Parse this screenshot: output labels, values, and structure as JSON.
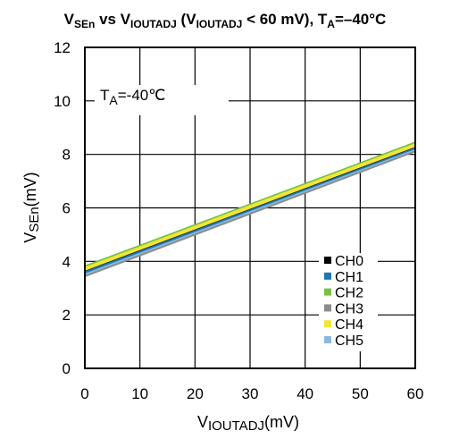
{
  "chart_data": {
    "type": "line",
    "title": {
      "v": "V",
      "v_sub": "SEn",
      "mid": " vs V",
      "mid_sub": "IOUTADJ",
      "paren_open": " (V",
      "paren_sub": "IOUTADJ",
      "cond": " < 60 mV), T",
      "t_sub": "A",
      "temp": "=–40°C"
    },
    "xlabel": {
      "v": "V",
      "sub": "IOUTADJ",
      "unit": "(mV)"
    },
    "ylabel": {
      "v": "V",
      "sub": "SEn",
      "unit": "(mV)"
    },
    "annotation": {
      "t": "T",
      "sub": "A",
      "rest": "=-40℃"
    },
    "xlim": [
      0,
      60
    ],
    "ylim": [
      0,
      12
    ],
    "x_ticks": [
      0,
      10,
      20,
      30,
      40,
      50,
      60
    ],
    "y_ticks": [
      0,
      2,
      4,
      6,
      8,
      10,
      12
    ],
    "x_tick_labels": [
      "0",
      "10",
      "20",
      "30",
      "40",
      "50",
      "60"
    ],
    "y_tick_labels": [
      "0",
      "2",
      "4",
      "6",
      "8",
      "10",
      "12"
    ],
    "grid": true,
    "legend_position": "bottom-right",
    "series": [
      {
        "name": "CH0",
        "color": "#000000",
        "x": [
          0,
          60
        ],
        "y": [
          3.7,
          8.33
        ]
      },
      {
        "name": "CH1",
        "color": "#1f77b4",
        "x": [
          0,
          60
        ],
        "y": [
          3.62,
          8.27
        ]
      },
      {
        "name": "CH2",
        "color": "#77c043",
        "x": [
          0,
          60
        ],
        "y": [
          3.78,
          8.41
        ]
      },
      {
        "name": "CH3",
        "color": "#8c8c8c",
        "x": [
          0,
          60
        ],
        "y": [
          3.48,
          8.15
        ]
      },
      {
        "name": "CH4",
        "color": "#f2e538",
        "x": [
          0,
          60
        ],
        "y": [
          3.72,
          8.35
        ]
      },
      {
        "name": "CH5",
        "color": "#8ab8dc",
        "x": [
          0,
          60
        ],
        "y": [
          3.55,
          8.22
        ]
      }
    ]
  }
}
